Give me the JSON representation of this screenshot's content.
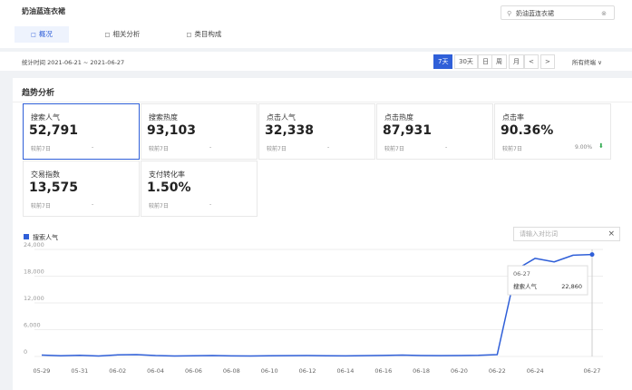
{
  "header": {
    "title": "奶油蓝连衣裙",
    "search": "奶油蓝连衣裙"
  },
  "tabs": [
    "概况",
    "相关分析",
    "类目构成"
  ],
  "stat_time": "统计时间 2021-06-21 ~ 2021-06-27",
  "buttons": [
    "7天",
    "30天",
    "日",
    "周",
    "月",
    "<",
    ">"
  ],
  "terminal": "所有终端",
  "section_title": "趋势分析",
  "cards": [
    {
      "label": "搜索人气",
      "value": "52,791",
      "compare": "较前7日",
      "change": "-"
    },
    {
      "label": "搜索热度",
      "value": "93,103",
      "compare": "较前7日",
      "change": "-"
    },
    {
      "label": "点击人气",
      "value": "32,338",
      "compare": "较前7日",
      "change": "-"
    },
    {
      "label": "点击热度",
      "value": "87,931",
      "compare": "较前7日",
      "change": "-"
    },
    {
      "label": "点击率",
      "value": "90.36%",
      "compare": "较前7日",
      "change": "9.00%"
    },
    {
      "label": "交易指数",
      "value": "13,575",
      "compare": "较前7日",
      "change": "-"
    },
    {
      "label": "支付转化率",
      "value": "1.50%",
      "compare": "较前7日",
      "change": "-"
    }
  ],
  "compare_input": "请输入对比词",
  "close": "×",
  "tooltip": {
    "date": "06-27",
    "name": "搜索人气",
    "value": "22,860"
  },
  "chart_data": {
    "type": "line",
    "categories": [
      "05-29",
      null,
      "05-31",
      null,
      "06-02",
      null,
      "06-04",
      null,
      "06-06",
      null,
      "06-08",
      null,
      "06-10",
      null,
      "06-12",
      null,
      "06-14",
      null,
      "06-16",
      null,
      "06-18",
      null,
      "06-20",
      null,
      "06-22",
      null,
      "06-24",
      null,
      null,
      "06-27"
    ],
    "series": [
      {
        "name": "搜索人气",
        "color": "#2f5fd8",
        "values": [
          300,
          150,
          250,
          100,
          350,
          400,
          200,
          100,
          150,
          200,
          120,
          100,
          150,
          180,
          200,
          150,
          130,
          180,
          220,
          300,
          200,
          180,
          200,
          250,
          400,
          19500,
          22000,
          21200,
          22700,
          22860
        ]
      }
    ],
    "ylim": [
      0,
      24000
    ],
    "yticks": [
      0,
      {
        "value": 6000,
        "label": "6,000"
      },
      {
        "value": 12000,
        "label": "12,000"
      },
      {
        "value": 18000,
        "label": "18,000"
      },
      {
        "value": 24000,
        "label": "24,000"
      }
    ],
    "grid": true
  }
}
